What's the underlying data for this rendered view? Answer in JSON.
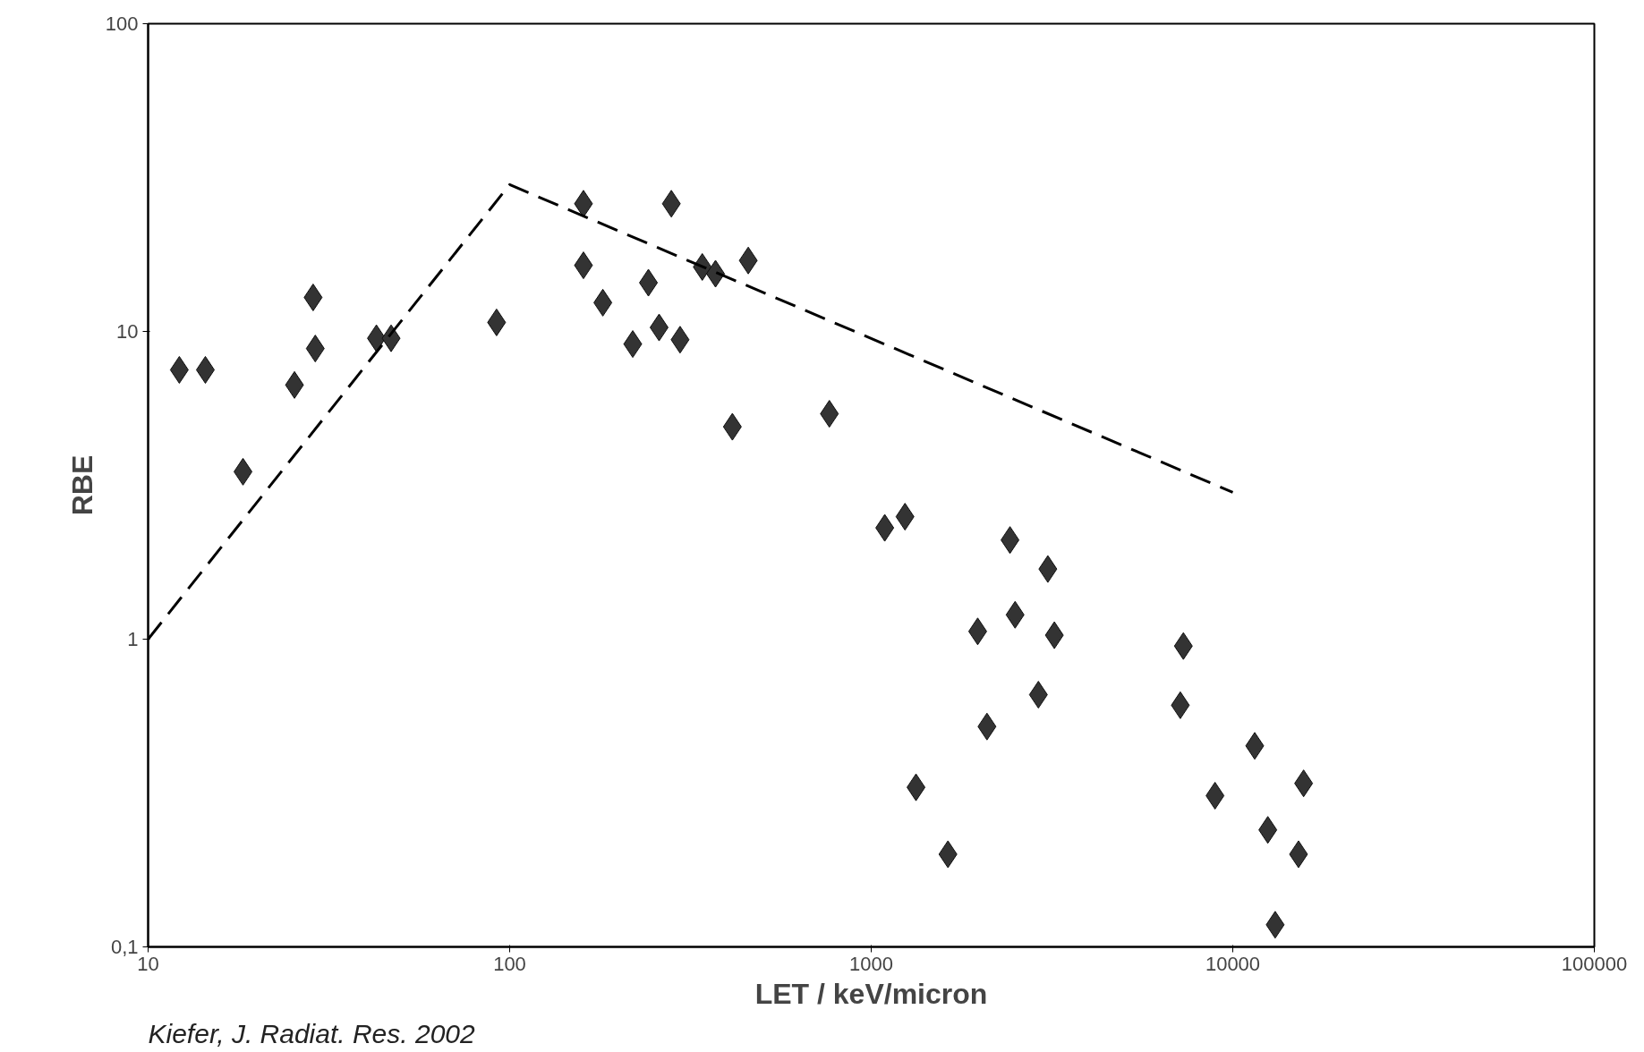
{
  "chart_data": {
    "type": "scatter",
    "xlabel": "LET / keV/micron",
    "ylabel": "RBE",
    "log": "xy",
    "grid": false,
    "marker": "diamond",
    "xlim": [
      10,
      100000
    ],
    "xticks": [
      10,
      100,
      1000,
      10000,
      100000
    ],
    "ylim": [
      0.1,
      100
    ],
    "yticks": [
      {
        "value": 0.1,
        "label": "0,1"
      },
      1,
      10,
      100
    ],
    "annotations": [
      "Kiefer, J. Radiat. Res. 2002"
    ],
    "series": [
      {
        "color": "#333333",
        "x": [
          12.2,
          14.4,
          18.3,
          25.4,
          28.6,
          29,
          42.8,
          47,
          92,
          160,
          160,
          181,
          219,
          242,
          259,
          280,
          296,
          341,
          371,
          413,
          457,
          766,
          1090,
          1240,
          1330,
          1630,
          1970,
          2090,
          2420,
          2500,
          2900,
          3080,
          3210,
          7160,
          7300,
          8930,
          11500,
          12500,
          13100,
          15200,
          15700
        ],
        "values": [
          7.5,
          7.5,
          3.5,
          6.7,
          12.9,
          8.8,
          9.5,
          9.5,
          10.7,
          26,
          16.4,
          12.4,
          9.1,
          14.4,
          10.3,
          26,
          9.4,
          16.2,
          15.4,
          4.9,
          17,
          5.4,
          2.3,
          2.5,
          0.33,
          0.2,
          1.06,
          0.52,
          2.1,
          1.2,
          0.66,
          1.69,
          1.03,
          0.61,
          0.95,
          0.31,
          0.45,
          0.24,
          0.118,
          0.2,
          0.34
        ]
      },
      {
        "type": "line",
        "color": "#000000",
        "line_style": "dashed",
        "marker": "none",
        "x": [
          10,
          100,
          10000
        ],
        "values": [
          1,
          30,
          3
        ]
      }
    ]
  }
}
